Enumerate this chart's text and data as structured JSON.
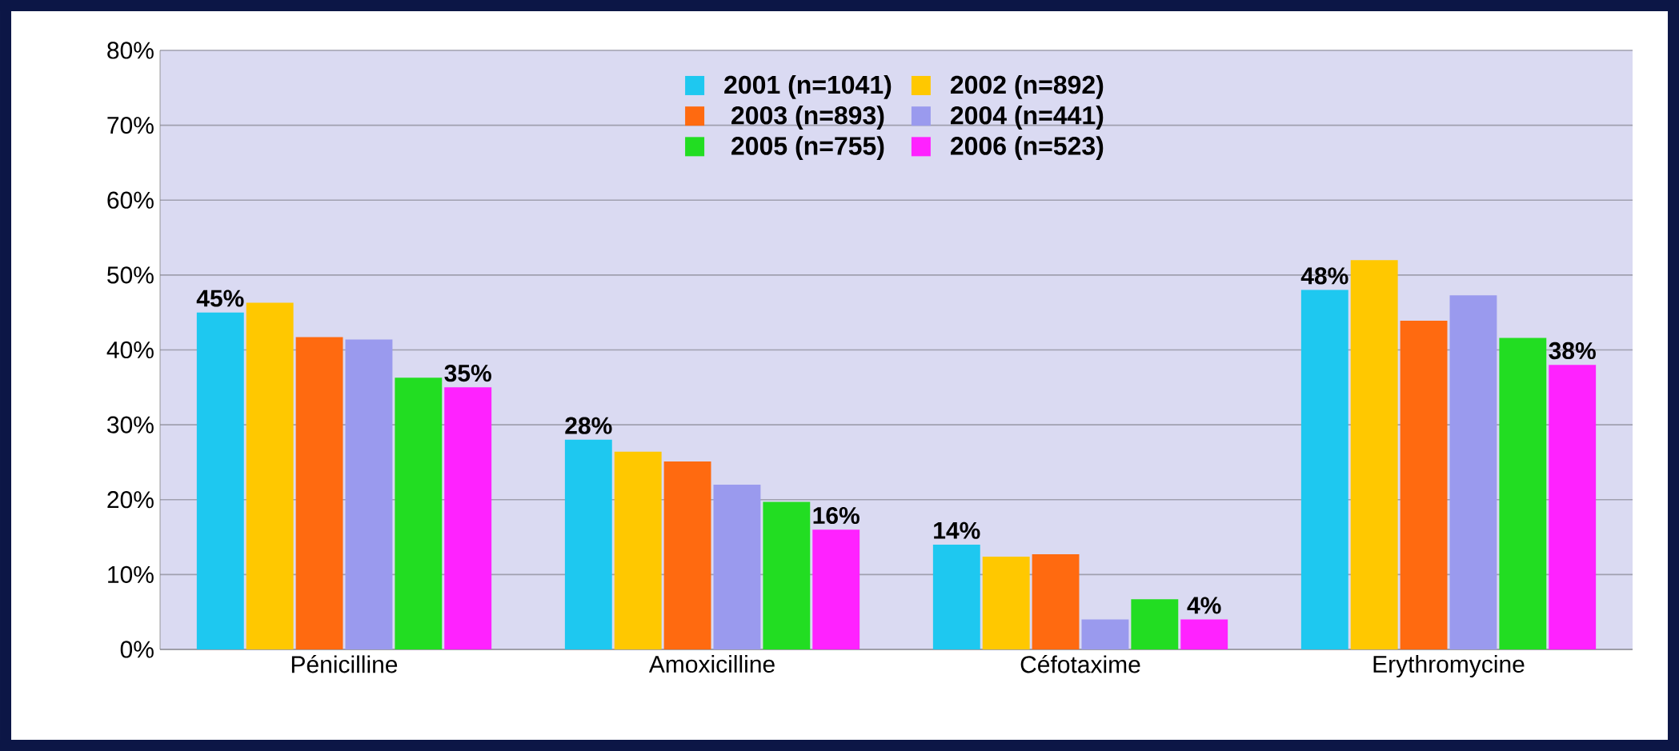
{
  "chart_data": {
    "type": "bar",
    "categories": [
      "Pénicilline",
      "Amoxicilline",
      "Céfotaxime",
      "Erythromycine"
    ],
    "series": [
      {
        "name": "2001 (n=1041)",
        "color": "#1ec8f0",
        "values": [
          45,
          28,
          14,
          48
        ],
        "value_labels": [
          "45%",
          "28%",
          "14%",
          "48%"
        ]
      },
      {
        "name": "2002 (n=892)",
        "color": "#ffc800",
        "values": [
          46.3,
          26.4,
          12.4,
          52
        ],
        "value_labels": [
          null,
          null,
          null,
          null
        ]
      },
      {
        "name": "2003 (n=893)",
        "color": "#ff6a10",
        "values": [
          41.7,
          25.1,
          12.7,
          43.9
        ],
        "value_labels": [
          null,
          null,
          null,
          null
        ]
      },
      {
        "name": "2004 (n=441)",
        "color": "#9a9aee",
        "values": [
          41.4,
          22,
          4,
          47.3
        ],
        "value_labels": [
          null,
          null,
          null,
          null
        ]
      },
      {
        "name": "2005 (n=755)",
        "color": "#22dd22",
        "values": [
          36.3,
          19.7,
          6.7,
          41.6
        ],
        "value_labels": [
          null,
          null,
          null,
          null
        ]
      },
      {
        "name": "2006 (n=523)",
        "color": "#ff22ff",
        "values": [
          35,
          16,
          4,
          38
        ],
        "value_labels": [
          "35%",
          "16%",
          "4%",
          "38%"
        ]
      }
    ],
    "ylim": [
      0,
      80
    ],
    "yticks": [
      {
        "value": 0,
        "label": "0%"
      },
      {
        "value": 10,
        "label": "10%"
      },
      {
        "value": 20,
        "label": "20%"
      },
      {
        "value": 30,
        "label": "30%"
      },
      {
        "value": 40,
        "label": "40%"
      },
      {
        "value": 50,
        "label": "50%"
      },
      {
        "value": 60,
        "label": "60%"
      },
      {
        "value": 70,
        "label": "70%"
      },
      {
        "value": 80,
        "label": "80%"
      }
    ],
    "grid": "y",
    "legend": "top"
  }
}
